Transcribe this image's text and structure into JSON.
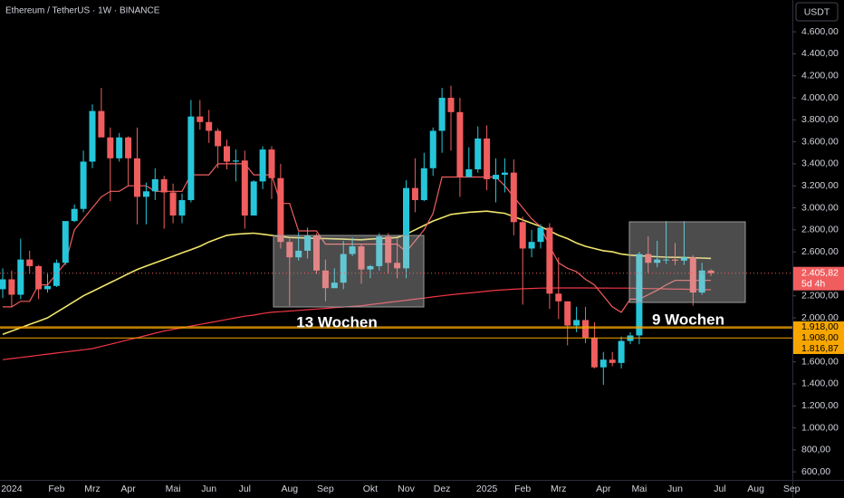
{
  "chart_data": {
    "type": "candlestick",
    "title": "Ethereum / TetherUS · 1W · BINANCE",
    "currency_button": "USDT",
    "up_color": "#26c6da",
    "down_color": "#f05d5e",
    "categories": [
      null,
      "2024",
      null,
      null,
      null,
      null,
      "Feb",
      null,
      null,
      null,
      "Mrz",
      null,
      null,
      null,
      "Apr",
      null,
      null,
      null,
      null,
      "Mai",
      null,
      null,
      null,
      "Jun",
      null,
      null,
      null,
      "Jul",
      null,
      null,
      null,
      null,
      "Aug",
      null,
      null,
      null,
      "Sep",
      null,
      null,
      null,
      null,
      "Okt",
      null,
      null,
      null,
      "Nov",
      null,
      null,
      null,
      "Dez",
      null,
      null,
      null,
      null,
      "2025",
      null,
      null,
      null,
      "Feb",
      null,
      null,
      null,
      "Mrz",
      null,
      null,
      null,
      null,
      "Apr",
      null,
      null,
      null,
      "Mai",
      null,
      null,
      null,
      "Jun",
      null,
      null,
      null,
      null,
      "Jul",
      null,
      null,
      null,
      "Aug",
      null,
      null,
      null,
      "Sep"
    ],
    "open": [
      2260,
      2350,
      2210,
      2530,
      2470,
      2260,
      2290,
      2500,
      2880,
      2990,
      3420,
      3880,
      3640,
      3450,
      3640,
      3450,
      3100,
      3150,
      3260,
      3140,
      2930,
      3070,
      3830,
      3780,
      3700,
      3560,
      3420,
      3430,
      2930,
      3240,
      3530,
      3270,
      2690,
      2550,
      2610,
      2750,
      2430,
      2270,
      2320,
      2580,
      2650,
      2440,
      2470,
      2740,
      2500,
      2450,
      3180,
      3070,
      3360,
      3700,
      4000,
      3870,
      3280,
      3350,
      3630,
      3260,
      3300,
      3320,
      2870,
      2630,
      2690,
      2820,
      2220,
      2150,
      1930,
      1980,
      1820,
      1550,
      1620,
      1590,
      1790,
      1840,
      2580,
      2500,
      2530,
      2530,
      2520,
      2550,
      2230,
      2430,
      null,
      null,
      null,
      null,
      null,
      null,
      null,
      null,
      null
    ],
    "high": [
      2450,
      2430,
      2720,
      2610,
      2480,
      2400,
      2530,
      2870,
      3030,
      3520,
      3940,
      4090,
      3730,
      3680,
      3650,
      3730,
      3230,
      3360,
      3290,
      3220,
      3130,
      3980,
      3980,
      3890,
      3720,
      3620,
      3530,
      3520,
      3250,
      3560,
      3560,
      3400,
      2720,
      2780,
      2820,
      2770,
      2530,
      2450,
      2700,
      2730,
      2670,
      2480,
      2770,
      2770,
      2720,
      3250,
      3450,
      3500,
      3730,
      4090,
      4110,
      4000,
      3550,
      3740,
      3750,
      3450,
      3450,
      3440,
      2920,
      2800,
      2850,
      2860,
      2550,
      2150,
      2100,
      2100,
      1960,
      1690,
      1690,
      1830,
      1870,
      2600,
      2740,
      2700,
      2880,
      2680,
      2880,
      2570,
      2500,
      2440,
      null,
      null,
      null,
      null,
      null,
      null,
      null,
      null,
      null
    ],
    "low": [
      2180,
      2100,
      2170,
      2400,
      2170,
      2230,
      2280,
      2480,
      2870,
      2960,
      3360,
      3680,
      3060,
      3420,
      3200,
      2850,
      2850,
      3070,
      2810,
      2860,
      2860,
      3050,
      3710,
      3590,
      3360,
      3350,
      3240,
      2810,
      2930,
      3170,
      3080,
      2630,
      2110,
      2520,
      2540,
      2400,
      2150,
      2270,
      2260,
      2560,
      2310,
      2360,
      2430,
      2400,
      2360,
      2360,
      2960,
      3060,
      3290,
      3500,
      3520,
      3100,
      3280,
      3320,
      3160,
      3050,
      3140,
      2750,
      2120,
      2550,
      2630,
      2080,
      1990,
      1750,
      1870,
      1770,
      1540,
      1390,
      1560,
      1540,
      1760,
      1760,
      2410,
      2460,
      2490,
      2480,
      2480,
      2110,
      2210,
      2380,
      null,
      null,
      null,
      null,
      null,
      null,
      null,
      null,
      null
    ],
    "close": [
      2350,
      2210,
      2530,
      2470,
      2260,
      2290,
      2500,
      2880,
      2990,
      3420,
      3880,
      3640,
      3450,
      3640,
      3450,
      3100,
      3150,
      3260,
      3140,
      2930,
      3070,
      3830,
      3780,
      3700,
      3560,
      3420,
      3430,
      2930,
      3240,
      3530,
      3270,
      2690,
      2550,
      2610,
      2750,
      2430,
      2270,
      2320,
      2580,
      2650,
      2440,
      2470,
      2740,
      2500,
      2450,
      3180,
      3070,
      3360,
      3700,
      4000,
      3870,
      3280,
      3350,
      3630,
      3260,
      3300,
      3320,
      2870,
      2630,
      2690,
      2820,
      2220,
      2150,
      1930,
      1980,
      1820,
      1550,
      1620,
      1590,
      1790,
      1840,
      2580,
      2500,
      2530,
      2530,
      2520,
      2550,
      2230,
      2430,
      2405.82,
      null,
      null,
      null,
      null,
      null,
      null,
      null,
      null,
      null
    ],
    "series": [
      {
        "color": "#f0e46a",
        "values": [
          1850,
          1880,
          1910,
          1940,
          1970,
          2000,
          2050,
          2100,
          2150,
          2200,
          2240,
          2280,
          2320,
          2360,
          2400,
          2440,
          2470,
          2500,
          2530,
          2560,
          2590,
          2620,
          2650,
          2690,
          2720,
          2750,
          2760,
          2765,
          2770,
          2760,
          2750,
          2740,
          2730,
          2728,
          2725,
          2722,
          2720,
          2718,
          2715,
          2712,
          2710,
          2715,
          2720,
          2725,
          2730,
          2760,
          2800,
          2840,
          2880,
          2910,
          2940,
          2950,
          2960,
          2965,
          2970,
          2960,
          2950,
          2920,
          2890,
          2860,
          2830,
          2790,
          2750,
          2720,
          2680,
          2650,
          2630,
          2610,
          2600,
          2580,
          2570,
          2565,
          2560,
          2556,
          2552,
          2550,
          2548,
          2546,
          2543,
          2540,
          null,
          null,
          null,
          null,
          null,
          null,
          null,
          null,
          null
        ]
      },
      {
        "color": "#f23645",
        "values": [
          1620,
          1630,
          1640,
          1650,
          1660,
          1670,
          1680,
          1690,
          1700,
          1710,
          1720,
          1740,
          1760,
          1780,
          1800,
          1820,
          1840,
          1860,
          1880,
          1895,
          1910,
          1925,
          1940,
          1955,
          1970,
          1985,
          2000,
          2015,
          2025,
          2040,
          2050,
          2056,
          2062,
          2068,
          2074,
          2080,
          2086,
          2092,
          2098,
          2104,
          2110,
          2120,
          2130,
          2140,
          2150,
          2160,
          2170,
          2180,
          2190,
          2200,
          2210,
          2218,
          2226,
          2234,
          2242,
          2250,
          2255,
          2260,
          2264,
          2267,
          2270,
          2271,
          2272,
          2272,
          2272,
          2272,
          2271,
          2271,
          2270,
          2270,
          2270,
          2268,
          2266,
          2265,
          2263,
          2261,
          2260,
          2258,
          2256,
          2255,
          null,
          null,
          null,
          null,
          null,
          null,
          null,
          null,
          null
        ]
      },
      {
        "color": "#f05d5e",
        "values": [
          2100,
          2100,
          2150,
          2150,
          2300,
          2300,
          2400,
          2500,
          2800,
          2900,
          3000,
          3100,
          3150,
          3150,
          3200,
          3200,
          3200,
          3150,
          3150,
          3150,
          3150,
          3300,
          3300,
          3300,
          3400,
          3400,
          3400,
          3400,
          3300,
          3300,
          3300,
          3040,
          3040,
          2790,
          2790,
          2790,
          2670,
          2670,
          2670,
          2670,
          2670,
          2670,
          2670,
          2670,
          2670,
          2600,
          2700,
          2800,
          2950,
          3280,
          3280,
          3280,
          3280,
          3280,
          3280,
          3280,
          3200,
          3100,
          3000,
          2900,
          2830,
          2650,
          2500,
          2450,
          2420,
          2350,
          2300,
          2200,
          2100,
          2050,
          2170,
          2170,
          2210,
          2250,
          2300,
          2340,
          2340,
          2340,
          2340,
          2340,
          null,
          null,
          null,
          null,
          null,
          null,
          null,
          null,
          null
        ]
      }
    ],
    "ylim": [
      527,
      4889
    ],
    "yticks": [
      {
        "value": 600,
        "label": "600,00"
      },
      {
        "value": 800,
        "label": "800,00"
      },
      {
        "value": 1000,
        "label": "1.000,00"
      },
      {
        "value": 1200,
        "label": "1.200,00"
      },
      {
        "value": 1400,
        "label": "1.400,00"
      },
      {
        "value": 1600,
        "label": "1.600,00"
      },
      {
        "value": 2000,
        "label": "2.000,00"
      },
      {
        "value": 2200,
        "label": "2.200,00"
      },
      {
        "value": 2600,
        "label": "2.600,00"
      },
      {
        "value": 2800,
        "label": "2.800,00"
      },
      {
        "value": 3000,
        "label": "3.000,00"
      },
      {
        "value": 3200,
        "label": "3.200,00"
      },
      {
        "value": 3400,
        "label": "3.400,00"
      },
      {
        "value": 3600,
        "label": "3.600,00"
      },
      {
        "value": 3800,
        "label": "3.800,00"
      },
      {
        "value": 4000,
        "label": "4.000,00"
      },
      {
        "value": 4200,
        "label": "4.200,00"
      },
      {
        "value": 4400,
        "label": "4.400,00"
      },
      {
        "value": 4600,
        "label": "4.600,00"
      }
    ],
    "hlines": [
      {
        "value": 1918,
        "label": "1.918,00",
        "color": "#f7a600"
      },
      {
        "value": 1908,
        "label": "1.908,00",
        "color": "#f7a600"
      },
      {
        "value": 1816.87,
        "label": "1.816,87",
        "color": "#f7a600"
      }
    ],
    "last_price": {
      "value": 2405.82,
      "label": "2.405,82",
      "countdown": "5d 4h",
      "color": "#f05d5e"
    },
    "annotations": [
      "13 Wochen",
      "9 Wochen"
    ]
  }
}
